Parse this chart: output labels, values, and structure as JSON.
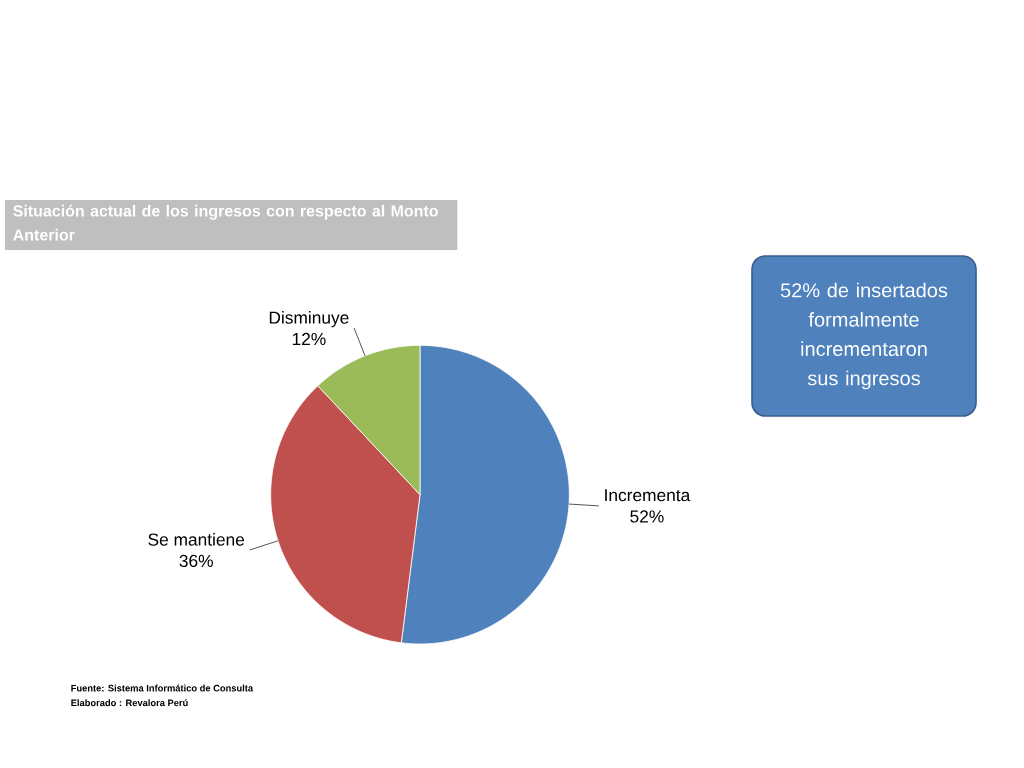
{
  "chart_data": {
    "type": "pie",
    "title": "Situación actual de los ingresos con respecto al Monto Anterior",
    "categories": [
      "Incrementa",
      "Se mantiene",
      "Disminuye"
    ],
    "values": [
      52,
      36,
      12
    ],
    "value_labels": [
      "52%",
      "36%",
      "12%"
    ],
    "colors": [
      "#4f81bd",
      "#c0504d",
      "#9bbb59"
    ],
    "annotations": [
      "52% de insertados formalmente incrementaron sus ingresos",
      "Fuente: Sistema Informático de Consulta",
      "Elaborado : Revalora Perú"
    ]
  }
}
